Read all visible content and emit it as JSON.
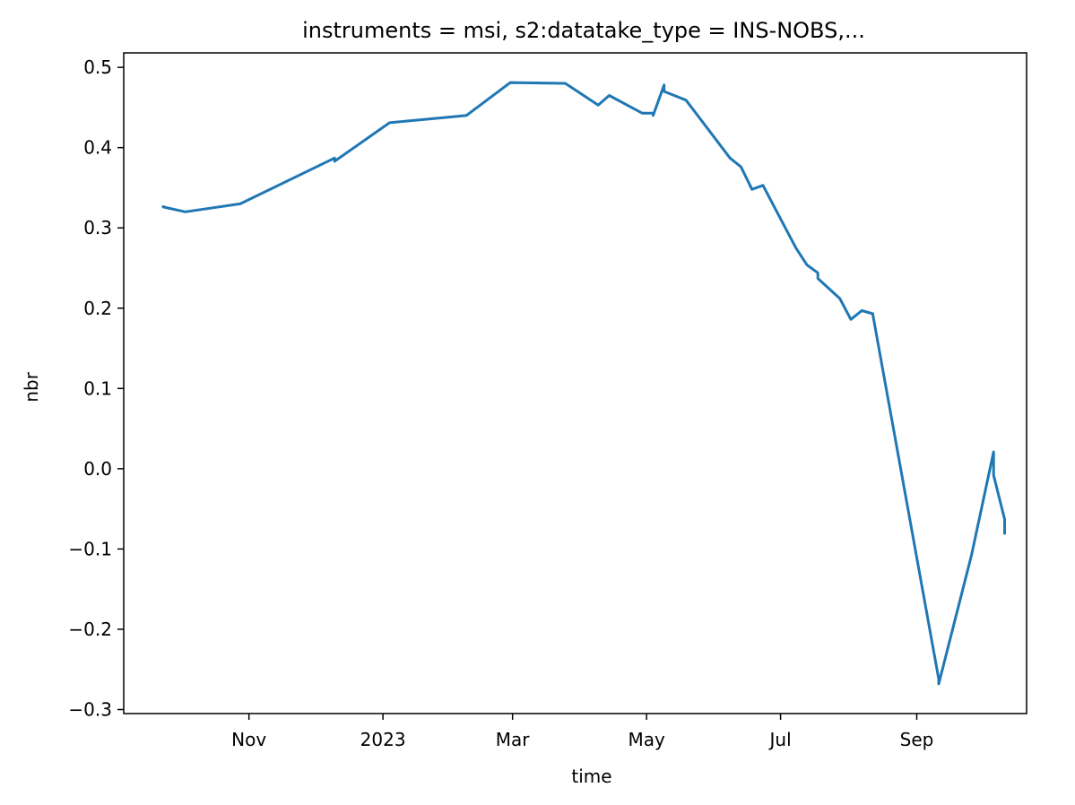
{
  "chart_data": {
    "type": "line",
    "title": "instruments = msi, s2:datatake_type = INS-NOBS,...",
    "xlabel": "time",
    "ylabel": "nbr",
    "xlim": [
      "2022-09-05",
      "2023-10-21"
    ],
    "ylim": [
      -0.305,
      0.518
    ],
    "grid": false,
    "legend": "none",
    "x_ticks": [
      {
        "label": "Nov",
        "date": "2022-11-01"
      },
      {
        "label": "2023",
        "date": "2023-01-01"
      },
      {
        "label": "Mar",
        "date": "2023-03-01"
      },
      {
        "label": "May",
        "date": "2023-05-01"
      },
      {
        "label": "Jul",
        "date": "2023-07-01"
      },
      {
        "label": "Sep",
        "date": "2023-09-01"
      }
    ],
    "y_ticks": [
      {
        "label": "0.5",
        "value": 0.5
      },
      {
        "label": "0.4",
        "value": 0.4
      },
      {
        "label": "0.3",
        "value": 0.3
      },
      {
        "label": "0.2",
        "value": 0.2
      },
      {
        "label": "0.1",
        "value": 0.1
      },
      {
        "label": "0.0",
        "value": 0.0
      },
      {
        "label": "−0.1",
        "value": -0.1
      },
      {
        "label": "−0.2",
        "value": -0.2
      },
      {
        "label": "−0.3",
        "value": -0.3
      }
    ],
    "series": [
      {
        "name": "nbr",
        "color": "#1f77b4",
        "x": [
          "2022-09-23",
          "2022-09-23",
          "2022-10-03",
          "2022-10-03",
          "2022-10-28",
          "2022-10-28",
          "2022-12-10",
          "2022-12-10",
          "2022-12-10",
          "2023-01-04",
          "2023-02-08",
          "2023-02-08",
          "2023-02-28",
          "2023-03-25",
          "2023-03-25",
          "2023-04-09",
          "2023-04-14",
          "2023-04-29",
          "2023-05-04",
          "2023-05-04",
          "2023-05-09",
          "2023-05-09",
          "2023-05-09",
          "2023-05-19",
          "2023-06-08",
          "2023-06-13",
          "2023-06-18",
          "2023-06-23",
          "2023-07-08",
          "2023-07-13",
          "2023-07-18",
          "2023-07-18",
          "2023-07-28",
          "2023-08-02",
          "2023-08-07",
          "2023-08-12",
          "2023-08-12",
          "2023-09-11",
          "2023-09-11",
          "2023-09-26",
          "2023-09-26",
          "2023-10-06",
          "2023-10-06",
          "2023-10-11",
          "2023-10-11"
        ],
        "values": [
          0.328,
          0.326,
          0.32,
          0.32,
          0.33,
          0.33,
          0.387,
          0.383,
          0.383,
          0.431,
          0.44,
          0.44,
          0.481,
          0.48,
          0.48,
          0.453,
          0.465,
          0.443,
          0.443,
          0.44,
          0.478,
          0.47,
          0.47,
          0.459,
          0.387,
          0.376,
          0.348,
          0.353,
          0.275,
          0.254,
          0.244,
          0.237,
          0.212,
          0.186,
          0.197,
          0.193,
          0.192,
          -0.262,
          -0.268,
          -0.107,
          -0.107,
          0.021,
          -0.008,
          -0.063,
          -0.082
        ]
      }
    ]
  }
}
